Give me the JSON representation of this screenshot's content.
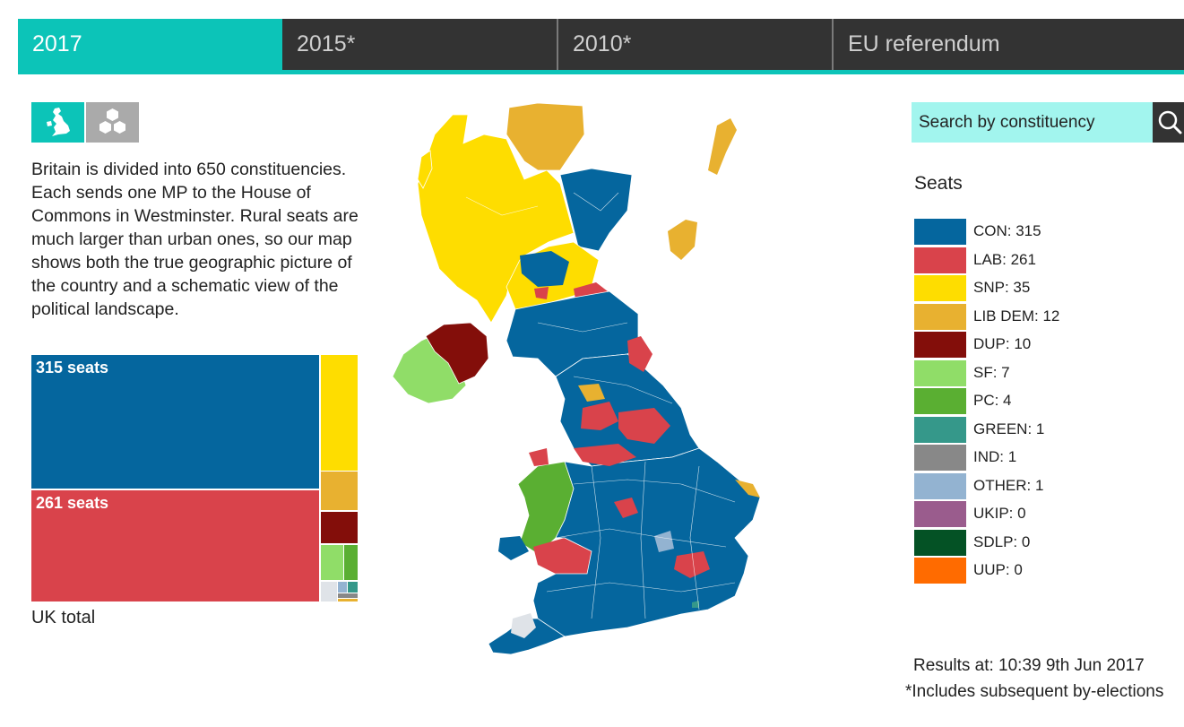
{
  "tabs": [
    {
      "label": "2017",
      "active": true
    },
    {
      "label": "2015*",
      "active": false
    },
    {
      "label": "2010*",
      "active": false
    },
    {
      "label": "EU referendum",
      "active": false
    }
  ],
  "view_toggle": {
    "map_icon": "uk-map-icon",
    "hex_icon": "hexagon-icon",
    "selected": "map"
  },
  "intro_text": "Britain is divided into 650 constituencies. Each sends one MP to the House of Commons in Westminster. Rural seats are much larger than urban ones, so our map shows both the true geographic picture of the country and a schematic view of the political landscape.",
  "treemap": {
    "caption": "UK total",
    "blocks": [
      {
        "party": "CON",
        "label": "315 seats",
        "seats": 315,
        "color": "#05669e"
      },
      {
        "party": "LAB",
        "label": "261 seats",
        "seats": 261,
        "color": "#d9434b"
      },
      {
        "party": "SNP",
        "seats": 35,
        "color": "#fedd00"
      },
      {
        "party": "LIB DEM",
        "seats": 12,
        "color": "#e8b130"
      },
      {
        "party": "DUP",
        "seats": 10,
        "color": "#830e0a"
      },
      {
        "party": "SF",
        "seats": 7,
        "color": "#90dd68"
      },
      {
        "party": "PC",
        "seats": 4,
        "color": "#5aaf32"
      },
      {
        "party": "GREEN",
        "seats": 1,
        "color": "#35988a"
      },
      {
        "party": "IND",
        "seats": 1,
        "color": "#888888"
      },
      {
        "party": "OTHER",
        "seats": 1,
        "color": "#93b3d1"
      }
    ]
  },
  "search": {
    "placeholder": "Search by constituency",
    "icon": "search-icon"
  },
  "legend": {
    "title": "Seats",
    "items": [
      {
        "label": "CON: 315",
        "color": "#05669e"
      },
      {
        "label": "LAB: 261",
        "color": "#d9434b"
      },
      {
        "label": "SNP: 35",
        "color": "#fedd00"
      },
      {
        "label": "LIB DEM: 12",
        "color": "#e8b130"
      },
      {
        "label": "DUP: 10",
        "color": "#830e0a"
      },
      {
        "label": "SF: 7",
        "color": "#90dd68"
      },
      {
        "label": "PC: 4",
        "color": "#5aaf32"
      },
      {
        "label": "GREEN: 1",
        "color": "#35988a"
      },
      {
        "label": "IND: 1",
        "color": "#888888"
      },
      {
        "label": "OTHER: 1",
        "color": "#93b3d1"
      },
      {
        "label": "UKIP: 0",
        "color": "#9a5c8d"
      },
      {
        "label": "SDLP: 0",
        "color": "#045225"
      },
      {
        "label": "UUP: 0",
        "color": "#ff6b00"
      }
    ]
  },
  "results_time": "Results at:  10:39 9th Jun 2017",
  "footnote": "*Includes subsequent by-elections"
}
